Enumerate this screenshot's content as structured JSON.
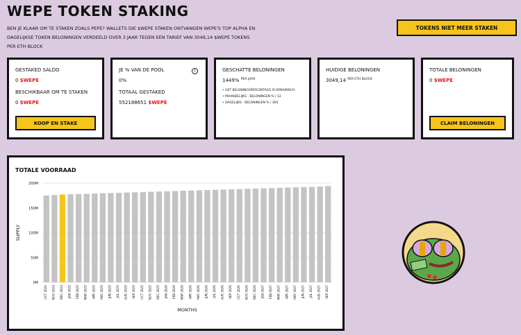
{
  "header": {
    "title": "WEPE TOKEN STAKING",
    "intro": "Ben je klaar om te staken zoals Pepe? Wallets die $WEPE staken ontvangen Wepe's top alpha en dagelijkse token beloningen verdeeld over 3 jaar tegen een tarief van 3049,14 $WEPE tokens per ETH block",
    "tokens_button": "TOKENS NIET MEER STAKEN"
  },
  "cards": {
    "balance": {
      "staked_label": "GESTAKED SALDO",
      "staked_value": "0",
      "staked_unit": "$WEPE",
      "available_label": "BESCHIKBAAR OM TE STAKEN",
      "available_value": "0",
      "available_unit": "$WEPE",
      "button": "KOOP EN STAKE"
    },
    "pool": {
      "share_label": "JE % VAN DE POOL",
      "share_value": "0%",
      "info_icon": "i",
      "total_label": "TOTAAL GESTAKED",
      "total_value": "552188651",
      "total_unit": "$WEPE"
    },
    "estimated": {
      "label": "GESCHATTE BELONINGEN",
      "value": "1449%",
      "unit": "PER JAAR",
      "bullets": [
        "HET BELONINGSPERCENTAGE IS DYNAMISCH",
        "MAANDELIJKS - BELONINGEN % / 12",
        "DAGELIJKS - BELONINGEN % / 365"
      ]
    },
    "current": {
      "label": "HUIDIGE BELONINGEN",
      "value": "3049,14",
      "unit": "PER ETH BLOCK"
    },
    "total": {
      "label": "TOTALE BELONINGEN",
      "value": "0",
      "unit": "$WEPE",
      "button": "CLAIM BELONINGEN"
    }
  },
  "chart_title": "TOTALE VOORRAAD",
  "chart_data": {
    "type": "bar",
    "title": "TOTALE VOORRAAD",
    "xlabel": "MONTHS",
    "ylabel": "SUPPLY",
    "ylim": [
      0,
      200000000
    ],
    "yticks": [
      "0M",
      "50M",
      "100M",
      "150M",
      "200M"
    ],
    "highlight_color": "#f7c41a",
    "bar_color": "#c4c4c4",
    "highlight_index": 2,
    "categories": [
      "OCT 2024",
      "NOV 2024",
      "DEC 2024",
      "JAN 2025",
      "FEB 2025",
      "MAR 2025",
      "APR 2025",
      "MAY 2025",
      "JUN 2025",
      "JUL 2025",
      "AUG 2025",
      "SEP 2025",
      "OCT 2025",
      "NOV 2025",
      "DEC 2025",
      "JAN 2026",
      "FEB 2026",
      "MAR 2026",
      "APR 2026",
      "MAY 2026",
      "JUN 2026",
      "JUL 2026",
      "AUG 2026",
      "SEP 2026",
      "OCT 2026",
      "NOV 2026",
      "DEC 2026",
      "JAN 2027",
      "FEB 2027",
      "MAR 2027",
      "APR 2027",
      "MAY 2027",
      "JUN 2027",
      "JUL 2027",
      "AUG 2027",
      "SEP 2027"
    ],
    "values": [
      175000000,
      176000000,
      177000000,
      177500000,
      178000000,
      178500000,
      179000000,
      179500000,
      180000000,
      180500000,
      181000000,
      181500000,
      182000000,
      182500000,
      183000000,
      183500000,
      184000000,
      184500000,
      185000000,
      185500000,
      186000000,
      186500000,
      187000000,
      187500000,
      188000000,
      188500000,
      189000000,
      189500000,
      190000000,
      190500000,
      191000000,
      191500000,
      192000000,
      192500000,
      193000000,
      194000000
    ]
  }
}
